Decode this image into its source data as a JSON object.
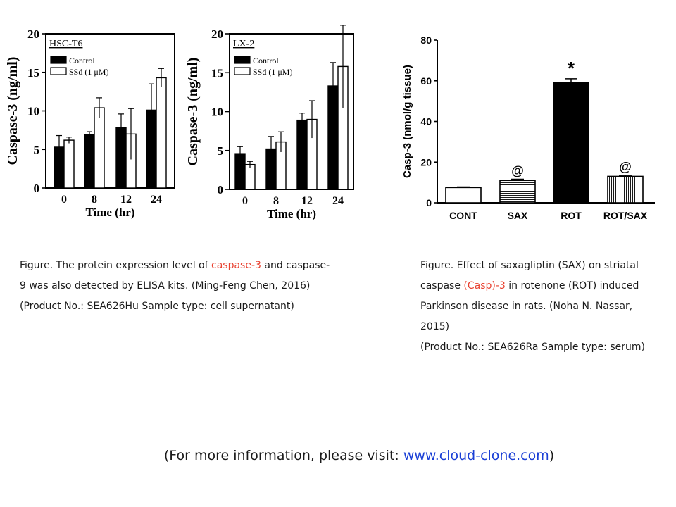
{
  "chart_data": [
    {
      "type": "bar",
      "panel_label": "HSC-T6",
      "categories": [
        "0",
        "8",
        "12",
        "24"
      ],
      "xlabel": "Time (hr)",
      "ylabel": "Caspase-3 (ng/ml)",
      "ylim": [
        0,
        20
      ],
      "yticks": [
        "0",
        "5",
        "10",
        "15",
        "20"
      ],
      "series": [
        {
          "name": "Control",
          "fill": "#000000",
          "values": [
            5.3,
            6.9,
            7.8,
            10.1
          ],
          "errors": [
            1.5,
            0.4,
            1.8,
            3.4
          ]
        },
        {
          "name": "SSd (1 μM)",
          "fill": "#ffffff",
          "values": [
            6.2,
            10.4,
            7.0,
            14.3
          ],
          "errors": [
            0.4,
            1.3,
            3.3,
            1.2
          ]
        }
      ]
    },
    {
      "type": "bar",
      "panel_label": "LX-2",
      "categories": [
        "0",
        "8",
        "12",
        "24"
      ],
      "xlabel": "Time (hr)",
      "ylabel": "Caspase-3 (ng/ml)",
      "ylim": [
        0,
        20
      ],
      "yticks": [
        "0",
        "5",
        "10",
        "15",
        "20"
      ],
      "series": [
        {
          "name": "Control",
          "fill": "#000000",
          "values": [
            4.6,
            5.2,
            8.9,
            13.3
          ],
          "errors": [
            0.9,
            1.6,
            0.9,
            3.0
          ]
        },
        {
          "name": "SSd (1 μM)",
          "fill": "#ffffff",
          "values": [
            3.2,
            6.1,
            9.0,
            15.8
          ],
          "errors": [
            0.4,
            1.3,
            2.4,
            5.3
          ]
        }
      ]
    },
    {
      "type": "bar",
      "categories": [
        "CONT",
        "SAX",
        "ROT",
        "ROT/SAX"
      ],
      "xlabel": "",
      "ylabel": "Casp-3 (nmol/g tissue)",
      "ylim": [
        0,
        80
      ],
      "yticks": [
        "0",
        "20",
        "40",
        "60",
        "80"
      ],
      "values": [
        7.5,
        11,
        59,
        13
      ],
      "errors": [
        0.3,
        0.6,
        2.0,
        0.5
      ],
      "patterns": [
        "white",
        "horizontal-stripes",
        "black",
        "vertical-stripes"
      ],
      "annotations": [
        "",
        "@",
        "*",
        "@"
      ]
    }
  ],
  "captions": {
    "left": {
      "line1_pre": "Figure. The protein expression level of ",
      "line1_hl": "caspase-3",
      "line1_post": " and caspase-",
      "line2": "9 was also detected by ELISA kits. (Ming-Feng Chen, 2016)",
      "line3": "(Product No.: SEA626Hu Sample type: cell supernatant)"
    },
    "right": {
      "line1": "Figure. Effect of saxagliptin (SAX) on striatal",
      "line2_pre": "caspase ",
      "line2_hl": "(Casp)-3",
      "line2_post": " in rotenone (ROT) induced",
      "line3": "Parkinson disease in rats. (Noha N. Nassar,",
      "line4": "2015)",
      "line5": "(Product No.: SEA626Ra Sample type: serum)"
    }
  },
  "footer": {
    "pre": "(For more information, please visit: ",
    "link": "www.cloud-clone.com",
    "post": ")"
  },
  "colors": {
    "highlight": "#e8402f",
    "link": "#1a3fd6"
  }
}
